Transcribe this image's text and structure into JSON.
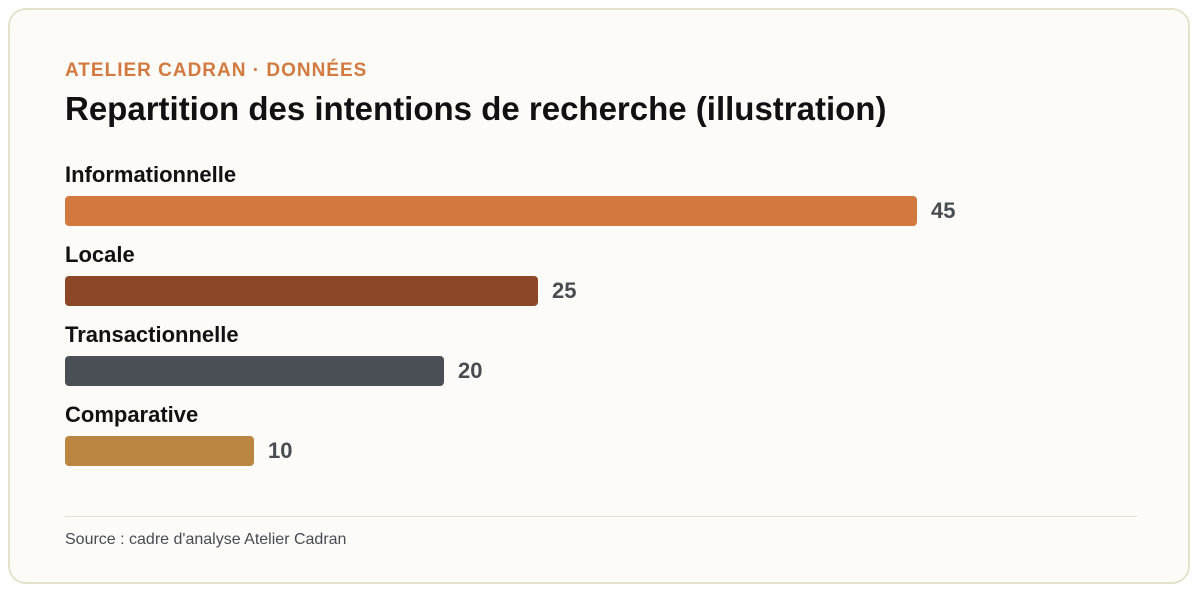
{
  "header": {
    "eyebrow": "ATELIER CADRAN · DONNÉES",
    "title": "Repartition des intentions de recherche (illustration)"
  },
  "footer": {
    "source": "Source : cadre d'analyse Atelier Cadran"
  },
  "colors": {
    "accent": "#d2793f",
    "bars": [
      "#d2793f",
      "#8b4726",
      "#4a4f56",
      "#bb8641"
    ]
  },
  "chart_data": {
    "type": "bar",
    "orientation": "horizontal",
    "title": "Repartition des intentions de recherche (illustration)",
    "categories": [
      "Informationnelle",
      "Locale",
      "Transactionnelle",
      "Comparative"
    ],
    "values": [
      45,
      25,
      20,
      10
    ],
    "xlim": [
      0,
      45
    ],
    "grid": false
  }
}
